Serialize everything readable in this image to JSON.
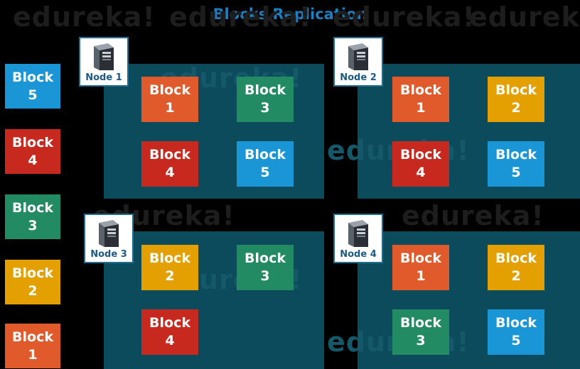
{
  "title": "Blocks Replication",
  "watermark": "edureka!",
  "block_word": "Block",
  "colors": {
    "block1": "#e05a2b",
    "block2": "#e4a000",
    "block3": "#238b63",
    "block4": "#c8291f",
    "block5": "#1a96d6",
    "panel": "#0c4b5c",
    "title": "#1c7fc0"
  },
  "source_blocks": [
    {
      "number": "5"
    },
    {
      "number": "4"
    },
    {
      "number": "3"
    },
    {
      "number": "2"
    },
    {
      "number": "1"
    }
  ],
  "nodes": [
    {
      "label": "Node 1",
      "icon": "server-icon",
      "blocks": [
        "1",
        "3",
        "4",
        "5"
      ]
    },
    {
      "label": "Node 2",
      "icon": "server-icon",
      "blocks": [
        "1",
        "2",
        "4",
        "5"
      ]
    },
    {
      "label": "Node 3",
      "icon": "server-icon",
      "blocks": [
        "2",
        "3",
        "4"
      ]
    },
    {
      "label": "Node 4",
      "icon": "server-icon",
      "blocks": [
        "1",
        "2",
        "3",
        "5"
      ]
    }
  ]
}
